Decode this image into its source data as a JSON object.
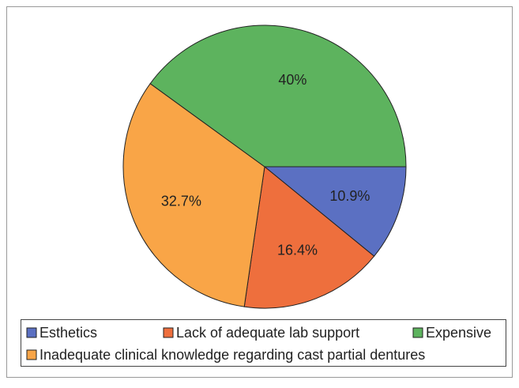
{
  "chart_data": {
    "type": "pie",
    "categories": [
      "Esthetics",
      "Lack of adequate lab support",
      "Inadequate clinical knowledge regarding cast partial dentures",
      "Expensive"
    ],
    "values": [
      10.9,
      16.4,
      32.7,
      40
    ],
    "value_labels": [
      "10.9%",
      "16.4%",
      "32.7%",
      "40%"
    ],
    "colors": [
      "#5b70c2",
      "#ee6f3d",
      "#f9a547",
      "#5db35e"
    ]
  }
}
